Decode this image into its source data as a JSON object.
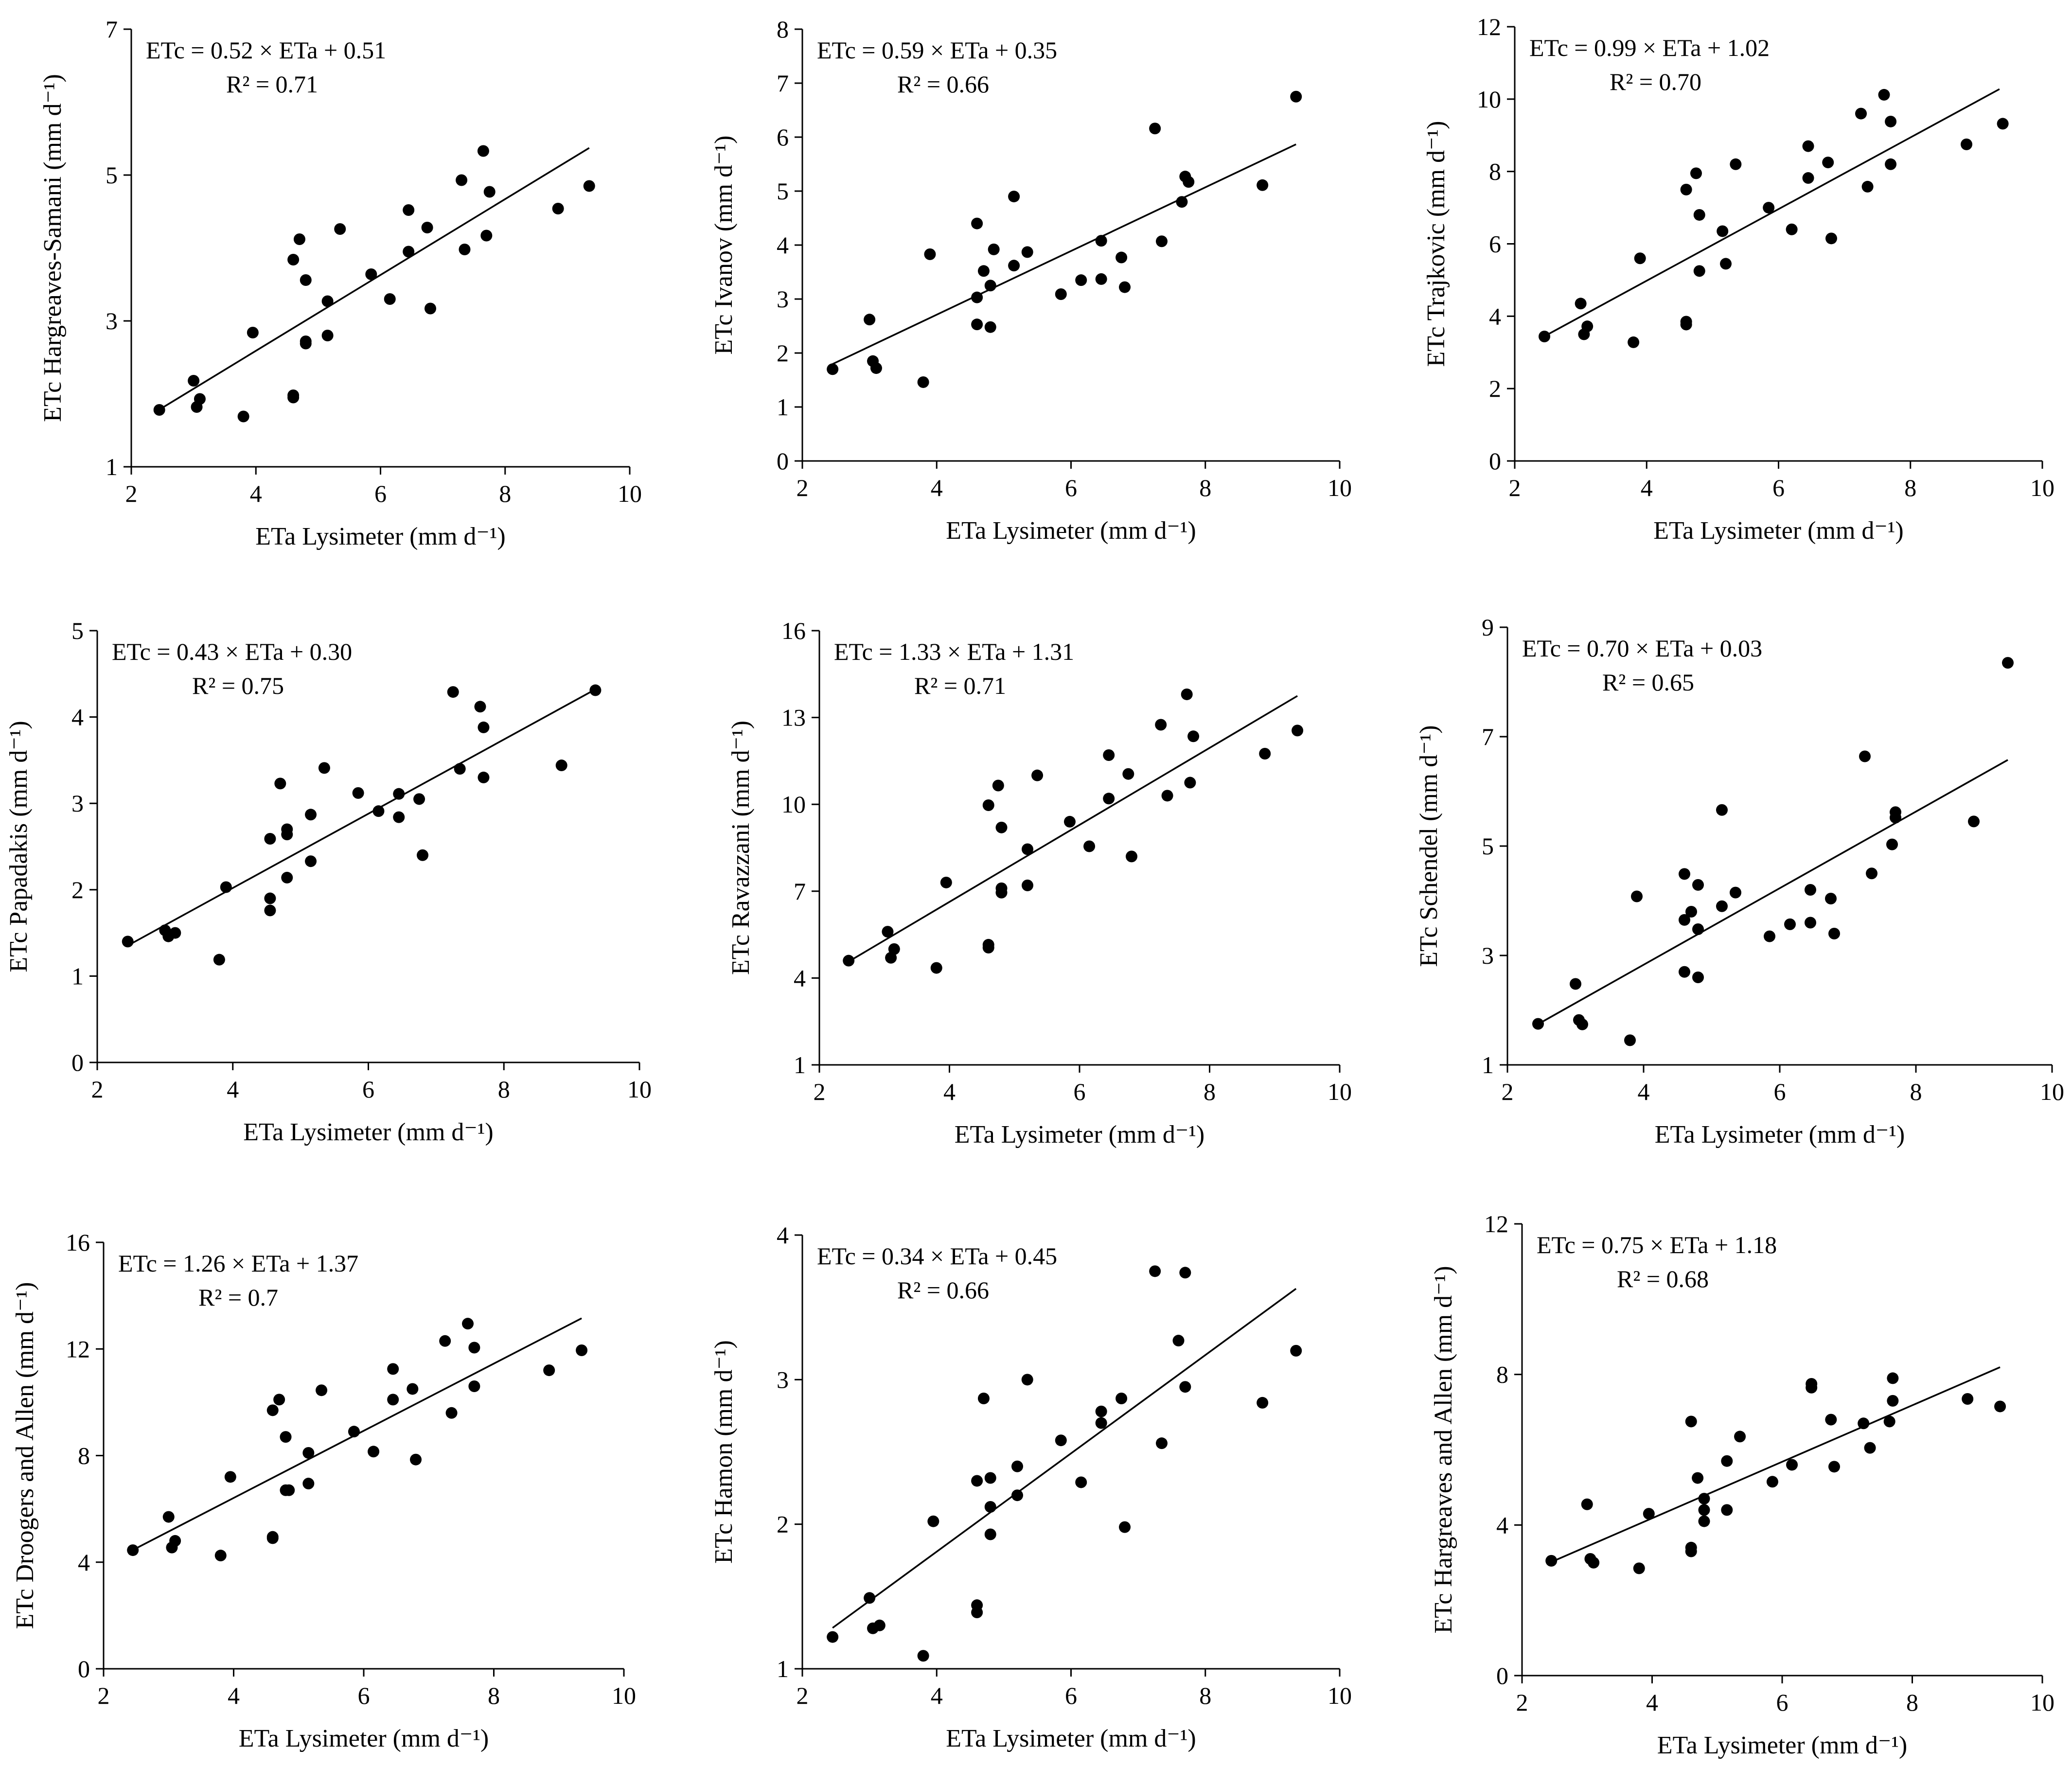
{
  "chart_data": [
    {
      "type": "scatter",
      "id": "hargreaves-samani",
      "xlabel": "ETa Lysimeter (mm d⁻¹)",
      "ylabel": "ETc Hargreaves-Samani (mm d⁻¹)",
      "xlim": [
        2,
        10
      ],
      "ylim": [
        1,
        7
      ],
      "xticks": [
        2,
        4,
        6,
        8,
        10
      ],
      "yticks": [
        1,
        3,
        5,
        7
      ],
      "equation": "ETc = 0.52 × ETa + 0.51",
      "r2": "R² = 0.71",
      "trend": {
        "slope": 0.52,
        "intercept": 0.51,
        "x_range": [
          2.45,
          9.35
        ]
      },
      "points": [
        [
          2.45,
          1.78
        ],
        [
          3.0,
          2.18
        ],
        [
          3.05,
          1.82
        ],
        [
          3.1,
          1.93
        ],
        [
          3.8,
          1.69
        ],
        [
          3.95,
          2.84
        ],
        [
          4.6,
          3.84
        ],
        [
          4.6,
          1.95
        ],
        [
          4.6,
          1.98
        ],
        [
          4.7,
          4.12
        ],
        [
          4.8,
          3.56
        ],
        [
          4.8,
          2.72
        ],
        [
          4.8,
          2.69
        ],
        [
          5.15,
          3.27
        ],
        [
          5.15,
          2.8
        ],
        [
          5.35,
          4.26
        ],
        [
          5.85,
          3.64
        ],
        [
          6.15,
          3.3
        ],
        [
          6.45,
          4.52
        ],
        [
          6.45,
          3.95
        ],
        [
          6.75,
          4.28
        ],
        [
          6.8,
          3.17
        ],
        [
          7.3,
          4.93
        ],
        [
          7.35,
          3.98
        ],
        [
          7.65,
          5.33
        ],
        [
          7.7,
          4.17
        ],
        [
          7.75,
          4.77
        ],
        [
          8.85,
          4.54
        ],
        [
          9.35,
          4.85
        ]
      ]
    },
    {
      "type": "scatter",
      "id": "ivanov",
      "xlabel": "ETa Lysimeter (mm d⁻¹)",
      "ylabel": "ETc Ivanov (mm d⁻¹)",
      "xlim": [
        2,
        10
      ],
      "ylim": [
        0,
        8
      ],
      "xticks": [
        2,
        4,
        6,
        8,
        10
      ],
      "yticks": [
        0,
        1,
        2,
        3,
        4,
        5,
        6,
        7,
        8
      ],
      "equation": "ETc = 0.59 × ETa + 0.35",
      "r2": "R² = 0.66",
      "trend": {
        "slope": 0.59,
        "intercept": 0.35,
        "x_range": [
          2.45,
          9.35
        ]
      },
      "points": [
        [
          2.45,
          1.7
        ],
        [
          3.0,
          2.62
        ],
        [
          3.05,
          1.85
        ],
        [
          3.1,
          1.72
        ],
        [
          3.8,
          1.46
        ],
        [
          3.9,
          3.83
        ],
        [
          4.6,
          4.4
        ],
        [
          4.6,
          3.03
        ],
        [
          4.6,
          2.53
        ],
        [
          4.7,
          3.52
        ],
        [
          4.8,
          3.25
        ],
        [
          4.8,
          2.48
        ],
        [
          4.85,
          3.92
        ],
        [
          5.15,
          4.9
        ],
        [
          5.15,
          3.62
        ],
        [
          5.35,
          3.87
        ],
        [
          5.85,
          3.09
        ],
        [
          6.15,
          3.35
        ],
        [
          6.45,
          4.08
        ],
        [
          6.45,
          3.37
        ],
        [
          6.75,
          3.77
        ],
        [
          6.8,
          3.22
        ],
        [
          7.25,
          6.16
        ],
        [
          7.35,
          4.07
        ],
        [
          7.65,
          4.8
        ],
        [
          7.7,
          5.27
        ],
        [
          7.75,
          5.17
        ],
        [
          8.85,
          5.11
        ],
        [
          9.35,
          6.75
        ]
      ]
    },
    {
      "type": "scatter",
      "id": "trajkovic",
      "xlabel": "ETa Lysimeter (mm d⁻¹)",
      "ylabel": "ETc Trajkovic (mm d⁻¹)",
      "xlim": [
        2,
        10
      ],
      "ylim": [
        0,
        12
      ],
      "xticks": [
        2,
        4,
        6,
        8,
        10
      ],
      "yticks": [
        0,
        2,
        4,
        6,
        8,
        10,
        12
      ],
      "equation": "ETc = 0.99 × ETa + 1.02",
      "r2": "R² = 0.70",
      "trend": {
        "slope": 0.99,
        "intercept": 1.02,
        "x_range": [
          2.45,
          9.35
        ]
      },
      "points": [
        [
          2.45,
          3.44
        ],
        [
          3.0,
          4.35
        ],
        [
          3.05,
          3.5
        ],
        [
          3.1,
          3.72
        ],
        [
          3.8,
          3.28
        ],
        [
          3.9,
          5.6
        ],
        [
          4.6,
          7.5
        ],
        [
          4.6,
          3.77
        ],
        [
          4.6,
          3.85
        ],
        [
          4.75,
          7.95
        ],
        [
          4.8,
          6.8
        ],
        [
          4.8,
          5.25
        ],
        [
          5.15,
          6.35
        ],
        [
          5.2,
          5.45
        ],
        [
          5.35,
          8.2
        ],
        [
          5.85,
          7.0
        ],
        [
          6.2,
          6.4
        ],
        [
          6.45,
          8.7
        ],
        [
          6.45,
          7.82
        ],
        [
          6.75,
          8.25
        ],
        [
          6.8,
          6.15
        ],
        [
          7.25,
          9.6
        ],
        [
          7.35,
          7.58
        ],
        [
          7.6,
          10.12
        ],
        [
          7.7,
          8.2
        ],
        [
          7.7,
          9.38
        ],
        [
          8.85,
          8.75
        ],
        [
          9.4,
          9.32
        ]
      ]
    },
    {
      "type": "scatter",
      "id": "papadakis",
      "xlabel": "ETa Lysimeter (mm d⁻¹)",
      "ylabel": "ETc Papadakis  (mm d⁻¹)",
      "xlim": [
        2,
        10
      ],
      "ylim": [
        0,
        5
      ],
      "xticks": [
        2,
        4,
        6,
        8,
        10
      ],
      "yticks": [
        0,
        1,
        2,
        3,
        4,
        5
      ],
      "equation": "ETc = 0.43 × ETa + 0.30",
      "r2": "R² = 0.75",
      "trend": {
        "slope": 0.43,
        "intercept": 0.3,
        "x_range": [
          2.45,
          9.35
        ]
      },
      "points": [
        [
          2.45,
          1.4
        ],
        [
          3.0,
          1.53
        ],
        [
          3.05,
          1.46
        ],
        [
          3.15,
          1.5
        ],
        [
          3.8,
          1.19
        ],
        [
          3.9,
          2.03
        ],
        [
          4.55,
          2.59
        ],
        [
          4.55,
          1.9
        ],
        [
          4.55,
          1.76
        ],
        [
          4.7,
          3.23
        ],
        [
          4.8,
          2.7
        ],
        [
          4.8,
          2.64
        ],
        [
          4.8,
          2.14
        ],
        [
          5.15,
          2.87
        ],
        [
          5.15,
          2.33
        ],
        [
          5.35,
          3.41
        ],
        [
          5.85,
          3.12
        ],
        [
          6.15,
          2.91
        ],
        [
          6.45,
          3.11
        ],
        [
          6.45,
          2.84
        ],
        [
          6.75,
          3.05
        ],
        [
          6.8,
          2.4
        ],
        [
          7.25,
          4.29
        ],
        [
          7.35,
          3.4
        ],
        [
          7.65,
          4.12
        ],
        [
          7.7,
          3.3
        ],
        [
          7.7,
          3.88
        ],
        [
          8.85,
          3.44
        ],
        [
          9.35,
          4.31
        ]
      ]
    },
    {
      "type": "scatter",
      "id": "ravazzani",
      "xlabel": "ETa Lysimeter (mm d⁻¹)",
      "ylabel": "ETc Ravazzani  (mm d⁻¹)",
      "xlim": [
        2,
        10
      ],
      "ylim": [
        1,
        16
      ],
      "xticks": [
        2,
        4,
        6,
        8,
        10
      ],
      "yticks": [
        1,
        4,
        7,
        10,
        13,
        16
      ],
      "equation": "ETc = 1.33 × ETa + 1.31",
      "r2": "R² = 0.71",
      "trend": {
        "slope": 1.33,
        "intercept": 1.31,
        "x_range": [
          2.45,
          9.35
        ]
      },
      "points": [
        [
          2.45,
          4.6
        ],
        [
          3.05,
          5.6
        ],
        [
          3.1,
          4.7
        ],
        [
          3.15,
          5.0
        ],
        [
          3.8,
          4.35
        ],
        [
          3.95,
          7.3
        ],
        [
          4.6,
          9.97
        ],
        [
          4.6,
          5.05
        ],
        [
          4.6,
          5.15
        ],
        [
          4.75,
          10.65
        ],
        [
          4.8,
          9.2
        ],
        [
          4.8,
          7.1
        ],
        [
          4.8,
          6.95
        ],
        [
          5.2,
          8.45
        ],
        [
          5.2,
          7.2
        ],
        [
          5.35,
          11.0
        ],
        [
          5.85,
          9.4
        ],
        [
          6.15,
          8.55
        ],
        [
          6.45,
          11.7
        ],
        [
          6.45,
          10.2
        ],
        [
          6.75,
          11.05
        ],
        [
          6.8,
          8.2
        ],
        [
          7.25,
          12.75
        ],
        [
          7.35,
          10.3
        ],
        [
          7.65,
          13.8
        ],
        [
          7.7,
          10.75
        ],
        [
          7.75,
          12.35
        ],
        [
          8.85,
          11.75
        ],
        [
          9.35,
          12.55
        ]
      ]
    },
    {
      "type": "scatter",
      "id": "schendel",
      "xlabel": "ETa Lysimeter (mm d⁻¹)",
      "ylabel": "ETc Schendel  (mm d⁻¹)",
      "xlim": [
        2,
        10
      ],
      "ylim": [
        1,
        9
      ],
      "xticks": [
        2,
        4,
        6,
        8,
        10
      ],
      "yticks": [
        1,
        3,
        5,
        7,
        9
      ],
      "equation": "ETc = 0.70 × ETa + 0.03",
      "r2": "R² = 0.65",
      "trend": {
        "slope": 0.7,
        "intercept": 0.03,
        "x_range": [
          2.45,
          9.35
        ]
      },
      "points": [
        [
          2.45,
          1.75
        ],
        [
          3.0,
          2.48
        ],
        [
          3.05,
          1.82
        ],
        [
          3.1,
          1.74
        ],
        [
          3.8,
          1.45
        ],
        [
          3.9,
          4.08
        ],
        [
          4.6,
          4.49
        ],
        [
          4.6,
          3.65
        ],
        [
          4.6,
          2.7
        ],
        [
          4.7,
          3.8
        ],
        [
          4.8,
          4.29
        ],
        [
          4.8,
          3.48
        ],
        [
          4.8,
          2.6
        ],
        [
          5.15,
          5.66
        ],
        [
          5.15,
          3.9
        ],
        [
          5.35,
          4.15
        ],
        [
          5.85,
          3.35
        ],
        [
          6.15,
          3.57
        ],
        [
          6.45,
          4.2
        ],
        [
          6.45,
          3.6
        ],
        [
          6.75,
          4.04
        ],
        [
          6.8,
          3.4
        ],
        [
          7.25,
          6.64
        ],
        [
          7.35,
          4.5
        ],
        [
          7.65,
          5.03
        ],
        [
          7.7,
          5.62
        ],
        [
          7.7,
          5.52
        ],
        [
          8.85,
          5.45
        ],
        [
          9.35,
          8.35
        ]
      ]
    },
    {
      "type": "scatter",
      "id": "droogers-allen",
      "xlabel": "ETa Lysimeter (mm d⁻¹)",
      "ylabel": "ETc Droogers and Allen (mm d⁻¹)",
      "xlim": [
        2,
        10
      ],
      "ylim": [
        0,
        16
      ],
      "xticks": [
        2,
        4,
        6,
        8,
        10
      ],
      "yticks": [
        0,
        4,
        8,
        12,
        16
      ],
      "equation": "ETc = 1.26 × ETa + 1.37",
      "r2": "R² = 0.7",
      "trend": {
        "slope": 1.26,
        "intercept": 1.37,
        "x_range": [
          2.45,
          9.35
        ]
      },
      "points": [
        [
          2.45,
          4.45
        ],
        [
          3.0,
          5.7
        ],
        [
          3.05,
          4.55
        ],
        [
          3.1,
          4.8
        ],
        [
          3.8,
          4.25
        ],
        [
          3.95,
          7.2
        ],
        [
          4.6,
          9.7
        ],
        [
          4.6,
          4.9
        ],
        [
          4.6,
          4.95
        ],
        [
          4.7,
          10.1
        ],
        [
          4.8,
          8.7
        ],
        [
          4.8,
          6.7
        ],
        [
          4.85,
          6.7
        ],
        [
          5.15,
          8.1
        ],
        [
          5.15,
          6.95
        ],
        [
          5.35,
          10.45
        ],
        [
          5.85,
          8.9
        ],
        [
          6.15,
          8.15
        ],
        [
          6.45,
          11.25
        ],
        [
          6.45,
          10.1
        ],
        [
          6.75,
          10.5
        ],
        [
          6.8,
          7.85
        ],
        [
          7.25,
          12.3
        ],
        [
          7.35,
          9.6
        ],
        [
          7.6,
          12.95
        ],
        [
          7.7,
          10.6
        ],
        [
          7.7,
          12.05
        ],
        [
          8.85,
          11.2
        ],
        [
          9.35,
          11.95
        ]
      ]
    },
    {
      "type": "scatter",
      "id": "hamon",
      "xlabel": "ETa Lysimeter (mm d⁻¹)",
      "ylabel": "ETc Hamon  (mm d⁻¹)",
      "xlim": [
        2,
        10
      ],
      "ylim": [
        1,
        4
      ],
      "xticks": [
        2,
        4,
        6,
        8,
        10
      ],
      "yticks": [
        1,
        2,
        3,
        4
      ],
      "equation": "ETc = 0.34 × ETa + 0.45",
      "r2": "R² = 0.66",
      "trend": {
        "slope": 0.34,
        "intercept": 0.45,
        "x_range": [
          2.45,
          9.35
        ]
      },
      "points": [
        [
          2.45,
          1.22
        ],
        [
          3.0,
          1.49
        ],
        [
          3.05,
          1.28
        ],
        [
          3.15,
          1.3
        ],
        [
          3.8,
          1.09
        ],
        [
          3.95,
          2.02
        ],
        [
          4.6,
          2.3
        ],
        [
          4.6,
          1.44
        ],
        [
          4.6,
          1.39
        ],
        [
          4.7,
          2.87
        ],
        [
          4.8,
          2.32
        ],
        [
          4.8,
          2.12
        ],
        [
          4.8,
          1.93
        ],
        [
          5.2,
          2.4
        ],
        [
          5.2,
          2.2
        ],
        [
          5.35,
          3.0
        ],
        [
          5.85,
          2.58
        ],
        [
          6.15,
          2.29
        ],
        [
          6.45,
          2.78
        ],
        [
          6.45,
          2.7
        ],
        [
          6.75,
          2.87
        ],
        [
          6.8,
          1.98
        ],
        [
          7.25,
          3.75
        ],
        [
          7.35,
          2.56
        ],
        [
          7.6,
          3.27
        ],
        [
          7.7,
          3.74
        ],
        [
          7.7,
          2.95
        ],
        [
          8.85,
          2.84
        ],
        [
          9.35,
          3.2
        ]
      ]
    },
    {
      "type": "scatter",
      "id": "hargreaves-allen",
      "xlabel": "ETa Lysimeter (mm d⁻¹)",
      "ylabel": "ETc Hargreaves and Allen (mm d⁻¹)",
      "xlim": [
        2,
        10
      ],
      "ylim": [
        0,
        12
      ],
      "xticks": [
        2,
        4,
        6,
        8,
        10
      ],
      "yticks": [
        0,
        4,
        8,
        12
      ],
      "equation": "ETc = 0.75 × ETa + 1.18",
      "r2": "R² = 0.68",
      "trend": {
        "slope": 0.75,
        "intercept": 1.18,
        "x_range": [
          2.45,
          9.35
        ]
      },
      "points": [
        [
          2.45,
          3.05
        ],
        [
          3.0,
          4.55
        ],
        [
          3.05,
          3.1
        ],
        [
          3.1,
          3.0
        ],
        [
          3.8,
          2.85
        ],
        [
          3.95,
          4.3
        ],
        [
          4.6,
          6.75
        ],
        [
          4.6,
          3.4
        ],
        [
          4.6,
          3.3
        ],
        [
          4.7,
          5.25
        ],
        [
          4.8,
          4.7
        ],
        [
          4.8,
          4.4
        ],
        [
          4.8,
          4.1
        ],
        [
          5.15,
          5.7
        ],
        [
          5.15,
          4.4
        ],
        [
          5.35,
          6.35
        ],
        [
          5.85,
          5.15
        ],
        [
          6.15,
          5.6
        ],
        [
          6.45,
          7.75
        ],
        [
          6.45,
          7.65
        ],
        [
          6.75,
          6.8
        ],
        [
          6.8,
          5.55
        ],
        [
          7.25,
          6.7
        ],
        [
          7.35,
          6.05
        ],
        [
          7.65,
          6.75
        ],
        [
          7.7,
          7.9
        ],
        [
          7.7,
          7.3
        ],
        [
          8.85,
          7.35
        ],
        [
          9.35,
          7.15
        ]
      ]
    }
  ]
}
